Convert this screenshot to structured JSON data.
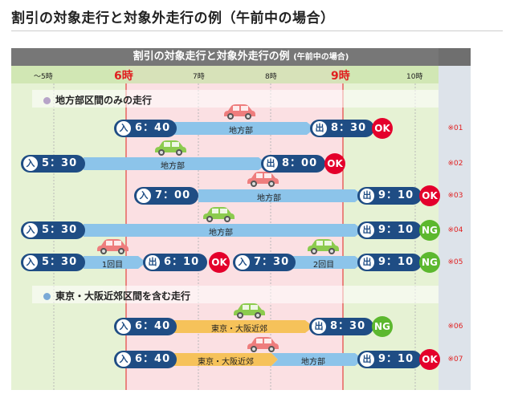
{
  "title": "割引の対象走行と対象外走行の例（午前中の場合）",
  "header": {
    "main": "割引の対象走行と対象外走行の例",
    "sub": "(午前中の場合)"
  },
  "time_labels": [
    "〜5時",
    "6時",
    "7時",
    "8時",
    "9時",
    "10時"
  ],
  "sections": [
    {
      "title": "地方部区間のみの走行"
    },
    {
      "title": "東京・大阪近郊区間を含む走行"
    }
  ],
  "icons": {
    "entry": "入",
    "exit": "出"
  },
  "rows": [
    {
      "entry": "6：40",
      "bars": [
        "地方部"
      ],
      "exit": "8：30",
      "result": "OK",
      "note": "※01"
    },
    {
      "entry": "5：30",
      "bars": [
        "地方部"
      ],
      "exit": "8：00",
      "result": "OK",
      "note": "※02"
    },
    {
      "entry": "7：00",
      "bars": [
        "地方部"
      ],
      "exit": "9：10",
      "result": "OK",
      "note": "※03"
    },
    {
      "entry": "5：30",
      "bars": [
        "地方部"
      ],
      "exit": "9：10",
      "result": "NG",
      "note": "※04"
    },
    {
      "entry": "5：30",
      "bars": [
        "1回目"
      ],
      "exit": "6：10",
      "result": "OK",
      "entry2": "7：30",
      "bars2": [
        "2回目"
      ],
      "exit2": "9：10",
      "result2": "NG",
      "note": "※05"
    },
    {
      "entry": "6：40",
      "bars": [
        "東京・大阪近郊"
      ],
      "exit": "8：30",
      "result": "NG",
      "note": "※06"
    },
    {
      "entry": "6：40",
      "bars": [
        "東京・大阪近郊",
        "地方部"
      ],
      "exit": "9：10",
      "result": "OK",
      "note": "※07"
    }
  ],
  "colors": {
    "header_bg": "#777777",
    "pink_zone": "#fbe0e3",
    "green_zone": "#e6f2d4",
    "pill": "#1f4d84",
    "blue_bar": "#8cc4ea",
    "yellow_bar": "#f6c25a",
    "ok": "#e4002b",
    "ng": "#5cb82e",
    "car_red": "#ee7d7d",
    "car_green": "#8ccb4e"
  }
}
